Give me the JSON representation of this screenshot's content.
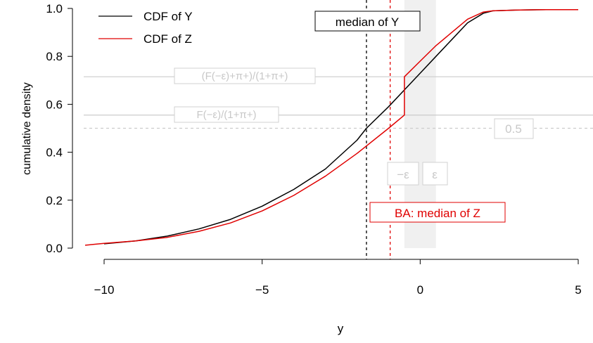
{
  "chart_data": {
    "type": "line",
    "xlabel": "y",
    "ylabel": "cumulative density",
    "xlim": [
      -10.6,
      5.6
    ],
    "ylim": [
      0,
      1.0
    ],
    "x_ticks": [
      -10,
      -5,
      0,
      5
    ],
    "x_tick_labels": [
      "−10",
      "−5",
      "0",
      "5"
    ],
    "y_ticks": [
      0.0,
      0.2,
      0.4,
      0.6,
      0.8,
      1.0
    ],
    "y_tick_labels": [
      "0.0",
      "0.2",
      "0.4",
      "0.6",
      "0.8",
      "1.0"
    ],
    "legend": {
      "position": "top-left",
      "entries": [
        "CDF of Y",
        "CDF of Z"
      ]
    },
    "colors": {
      "Y": "#000000",
      "Z": "#e00000",
      "grey": "#cccccc"
    },
    "series": [
      {
        "name": "CDF of Y",
        "color": "#000000",
        "points": [
          [
            -10,
            0.018
          ],
          [
            -9,
            0.03
          ],
          [
            -8,
            0.05
          ],
          [
            -7,
            0.08
          ],
          [
            -6,
            0.12
          ],
          [
            -5,
            0.175
          ],
          [
            -4,
            0.245
          ],
          [
            -3,
            0.33
          ],
          [
            -2,
            0.45
          ],
          [
            -1.7,
            0.5
          ],
          [
            -1,
            0.59
          ],
          [
            0,
            0.73
          ],
          [
            0.5,
            0.8
          ],
          [
            1,
            0.87
          ],
          [
            1.5,
            0.94
          ],
          [
            2,
            0.98
          ],
          [
            2.3,
            0.99
          ],
          [
            3,
            0.993
          ],
          [
            4,
            0.995
          ],
          [
            5,
            0.995
          ]
        ]
      },
      {
        "name": "CDF of Z",
        "color": "#e00000",
        "points": [
          [
            -10.6,
            0.012
          ],
          [
            -10,
            0.02
          ],
          [
            -9,
            0.03
          ],
          [
            -8,
            0.045
          ],
          [
            -7,
            0.07
          ],
          [
            -6,
            0.105
          ],
          [
            -5,
            0.155
          ],
          [
            -4,
            0.22
          ],
          [
            -3,
            0.3
          ],
          [
            -2,
            0.395
          ],
          [
            -1,
            0.5
          ],
          [
            -0.5,
            0.555
          ],
          [
            -0.5,
            0.715
          ],
          [
            0,
            0.78
          ],
          [
            0.5,
            0.845
          ],
          [
            1,
            0.9
          ],
          [
            1.5,
            0.955
          ],
          [
            2,
            0.985
          ],
          [
            2.3,
            0.99
          ],
          [
            3,
            0.993
          ],
          [
            4,
            0.995
          ],
          [
            5,
            0.995
          ]
        ]
      }
    ],
    "vlines": [
      {
        "x": -1.7,
        "label": "median of Y",
        "color": "#000000"
      },
      {
        "x": -0.95,
        "label": "BA: median of Z",
        "color": "#e00000"
      }
    ],
    "shaded_band": {
      "x0": -0.5,
      "x1": 0.5,
      "labels": [
        "−ε",
        "ε"
      ]
    },
    "hlines": [
      {
        "y": 0.715,
        "label": "(F(−ε)+π+)/(1+π+)"
      },
      {
        "y": 0.555,
        "label": "F(−ε)/(1+π+)"
      },
      {
        "y": 0.5,
        "label": "0.5",
        "dashed": true
      }
    ]
  }
}
